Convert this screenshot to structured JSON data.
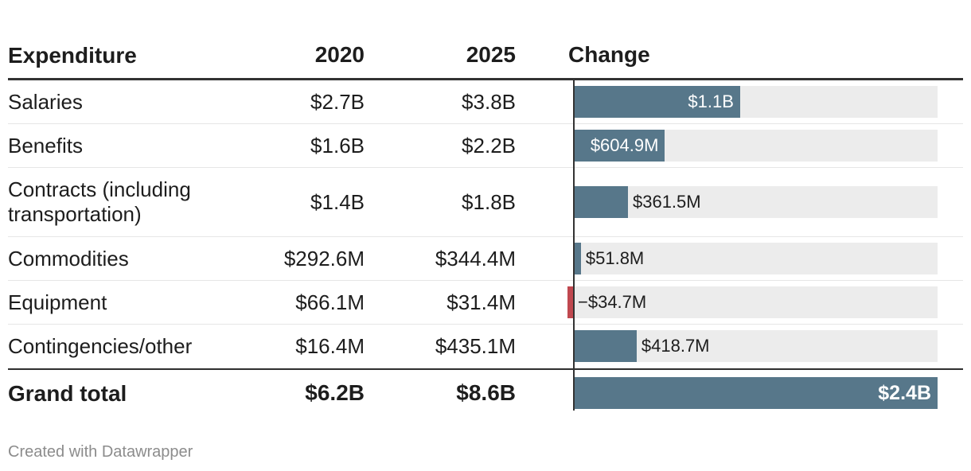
{
  "chart_data": {
    "type": "table",
    "columns": [
      "Expenditure",
      "2020",
      "2025",
      "Change"
    ],
    "rows": [
      {
        "name": "Salaries",
        "y2020": "$2.7B",
        "y2025": "$3.8B",
        "change_label": "$1.1B",
        "change": 1.1
      },
      {
        "name": "Benefits",
        "y2020": "$1.6B",
        "y2025": "$2.2B",
        "change_label": "$604.9M",
        "change": 0.6049
      },
      {
        "name": "Contracts (including transportation)",
        "y2020": "$1.4B",
        "y2025": "$1.8B",
        "change_label": "$361.5M",
        "change": 0.3615
      },
      {
        "name": "Commodities",
        "y2020": "$292.6M",
        "y2025": "$344.4M",
        "change_label": "$51.8M",
        "change": 0.0518
      },
      {
        "name": "Equipment",
        "y2020": "$66.1M",
        "y2025": "$31.4M",
        "change_label": "−$34.7M",
        "change": -0.0347
      },
      {
        "name": "Contingencies/other",
        "y2020": "$16.4M",
        "y2025": "$435.1M",
        "change_label": "$418.7M",
        "change": 0.4187
      }
    ],
    "total": {
      "name": "Grand total",
      "y2020": "$6.2B",
      "y2025": "$8.6B",
      "change_label": "$2.4B",
      "change": 2.4
    },
    "change_axis_max": 2.4,
    "colors": {
      "positive": "#57778a",
      "negative": "#c0484f",
      "track": "#ececec"
    }
  },
  "footer": "Created with Datawrapper"
}
